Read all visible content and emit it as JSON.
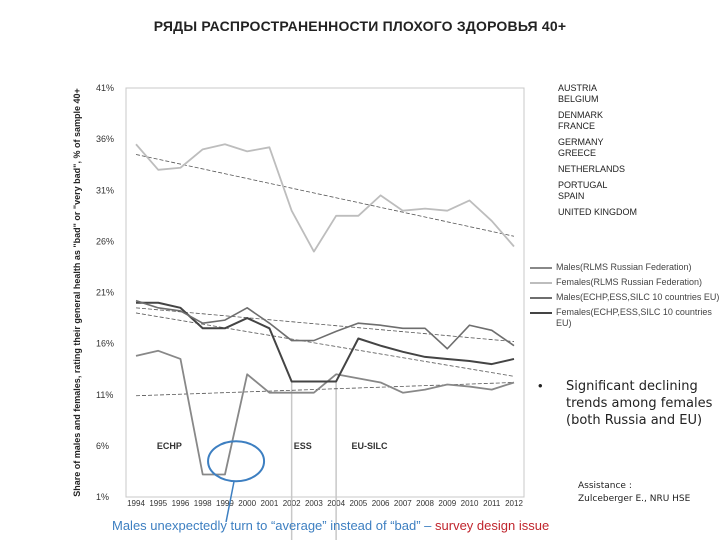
{
  "title": "РЯДЫ РАСПРОСТРАНЕННОСТИ ПЛОХОГО ЗДОРОВЬЯ 40+",
  "countries": [
    "AUSTRIA",
    "BELGIUM",
    "DENMARK",
    "FRANCE",
    "GERMANY",
    "GREECE",
    "NETHERLANDS",
    "PORTUGAL",
    "SPAIN",
    "UNITED KINGDOM"
  ],
  "legend": [
    {
      "label": "Males(RLMS Russian Federation)",
      "color": "#888888"
    },
    {
      "label": "Females(RLMS Russian Federation)",
      "color": "#bdbdbd"
    },
    {
      "label": "Males(ECHP,ESS,SILC 10 countries EU)",
      "color": "#6e6e6e"
    },
    {
      "label": "Females(ECHP,ESS,SILC 10 countries EU)",
      "color": "#444444"
    }
  ],
  "bullet": "•",
  "bullet_text": "Significant declining trends among females (both Russia and EU)",
  "assistance": {
    "line1": "Assistance :",
    "line2": "Zulceberger E., NRU HSE"
  },
  "footer": {
    "part1": "Males unexpectedly turn to “average” instead of “bad” – ",
    "part2": "survey design issue"
  },
  "chart_data": {
    "type": "line",
    "ylabel": "Share of males and females, rating their general health as \"bad\" or \"very bad\", % of sample 40+",
    "ytick_labels": [
      "1%",
      "6%",
      "11%",
      "16%",
      "21%",
      "26%",
      "31%",
      "36%",
      "41%"
    ],
    "yticks": [
      1,
      6,
      11,
      16,
      21,
      26,
      31,
      36,
      41
    ],
    "ylim": [
      1,
      41
    ],
    "x": [
      1994,
      1995,
      1996,
      1998,
      1999,
      2000,
      2001,
      2002,
      2003,
      2004,
      2005,
      2006,
      2007,
      2008,
      2009,
      2010,
      2011,
      2012
    ],
    "x_tick_labels": [
      "1994",
      "1995",
      "1996",
      "1998",
      "1999",
      "2000",
      "2001",
      "2002",
      "2003",
      "2004",
      "2005",
      "2006",
      "2007",
      "2008",
      "2009",
      "2010",
      "2011",
      "2012"
    ],
    "period_labels": [
      {
        "text": "ECHP",
        "x": 1995.5,
        "y": 6
      },
      {
        "text": "ESS",
        "x": 2002.5,
        "y": 6
      },
      {
        "text": "EU-SILC",
        "x": 2005.5,
        "y": 6
      }
    ],
    "period_dividers": [
      2002,
      2004
    ],
    "series": [
      {
        "name": "Females(RLMS Russian Federation)",
        "color": "#bdbdbd",
        "width": 1.8,
        "values": [
          35.5,
          33,
          33.2,
          35,
          35.5,
          34.8,
          35.2,
          29,
          25,
          28.5,
          28.5,
          30.5,
          29,
          29.2,
          29,
          30,
          28,
          25.5
        ]
      },
      {
        "name": "Males(RLMS Russian Federation)",
        "color": "#888888",
        "width": 1.8,
        "values": [
          14.8,
          15.3,
          14.5,
          3.2,
          3.2,
          13,
          11.2,
          11.2,
          11.2,
          13,
          12.6,
          12.2,
          11.2,
          11.5,
          12,
          11.8,
          11.5,
          12.2
        ]
      },
      {
        "name": "Females(ECHP,ESS,SILC 10 countries EU)",
        "color": "#444444",
        "width": 2,
        "values": [
          20,
          20,
          19.5,
          17.5,
          17.5,
          18.5,
          17.5,
          12.3,
          12.3,
          12.3,
          16.5,
          15.8,
          15.2,
          14.7,
          14.5,
          14.3,
          14,
          14.5
        ]
      },
      {
        "name": "Males(ECHP,ESS,SILC 10 countries EU)",
        "color": "#6e6e6e",
        "width": 1.6,
        "values": [
          20.2,
          19.5,
          19.2,
          18,
          18.3,
          19.5,
          18,
          16.3,
          16.3,
          17.2,
          18,
          17.8,
          17.5,
          17.5,
          15.5,
          17.8,
          17.3,
          15.8
        ]
      }
    ],
    "trend_lines": [
      {
        "color": "#555555",
        "from": [
          1994,
          34.5
        ],
        "to": [
          2012,
          26.5
        ]
      },
      {
        "color": "#555555",
        "from": [
          1994,
          19.5
        ],
        "to": [
          2012,
          16.2
        ]
      },
      {
        "color": "#555555",
        "from": [
          1994,
          19
        ],
        "to": [
          2012,
          12.8
        ]
      },
      {
        "color": "#555555",
        "from": [
          1994,
          10.9
        ],
        "to": [
          2012,
          12.2
        ]
      }
    ],
    "annotation": {
      "type": "circle",
      "x": 1999.5,
      "y": 4.5,
      "color": "#3d7fc1"
    },
    "grid": false
  }
}
